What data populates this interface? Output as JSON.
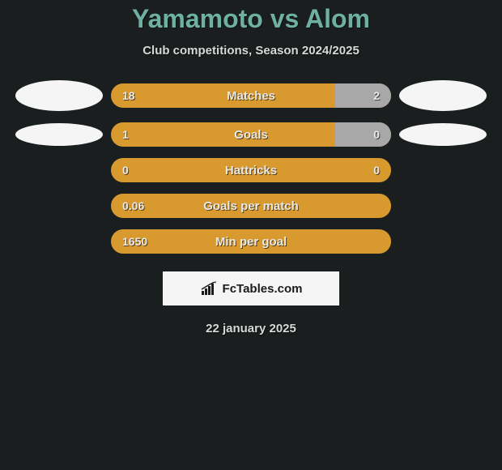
{
  "title": "Yamamoto vs Alom",
  "subtitle": "Club competitions, Season 2024/2025",
  "colors": {
    "background": "#1a1e1e",
    "title_color": "#6eb1a3",
    "text_color": "#d8d8d8",
    "bar_left_color": "#d89a2e",
    "bar_right_color": "#a8a8a8",
    "placeholder_color": "#f5f5f5"
  },
  "stats": [
    {
      "label": "Matches",
      "left_value": "18",
      "right_value": "2",
      "left_pct": 80,
      "right_pct": 20,
      "show_left_placeholder": true,
      "show_right_placeholder": true,
      "placeholder_tall": true
    },
    {
      "label": "Goals",
      "left_value": "1",
      "right_value": "0",
      "left_pct": 80,
      "right_pct": 20,
      "show_left_placeholder": true,
      "show_right_placeholder": true,
      "placeholder_tall": false
    },
    {
      "label": "Hattricks",
      "left_value": "0",
      "right_value": "0",
      "left_pct": 100,
      "right_pct": 0,
      "show_left_placeholder": false,
      "show_right_placeholder": false
    },
    {
      "label": "Goals per match",
      "left_value": "0.06",
      "right_value": "",
      "left_pct": 100,
      "right_pct": 0,
      "show_left_placeholder": false,
      "show_right_placeholder": false
    },
    {
      "label": "Min per goal",
      "left_value": "1650",
      "right_value": "",
      "left_pct": 100,
      "right_pct": 0,
      "show_left_placeholder": false,
      "show_right_placeholder": false
    }
  ],
  "logo_text": "FcTables.com",
  "date": "22 january 2025"
}
